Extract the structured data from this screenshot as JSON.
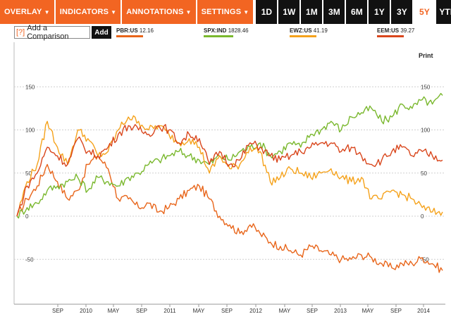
{
  "toolbar": {
    "menus": [
      {
        "label": "OVERLAY"
      },
      {
        "label": "INDICATORS"
      },
      {
        "label": "ANNOTATIONS"
      },
      {
        "label": "SETTINGS"
      }
    ],
    "caret": "▼",
    "ranges": [
      "1D",
      "1W",
      "1M",
      "3M",
      "6M",
      "1Y",
      "3Y",
      "5Y",
      "YTD"
    ],
    "active_range": "5Y"
  },
  "compare": {
    "icon_text": "[?]",
    "placeholder": "Add a Comparison",
    "add_label": "Add"
  },
  "print_label": "Print",
  "colors": {
    "PBR": "#e8651a",
    "SPX": "#7ab82e",
    "EWZ": "#f5a21b",
    "EEM": "#d9461c",
    "accent": "#f26522"
  },
  "chart_data": {
    "type": "line",
    "x_ticks": [
      "SEP",
      "2010",
      "MAY",
      "SEP",
      "2011",
      "MAY",
      "SEP",
      "2012",
      "MAY",
      "SEP",
      "2013",
      "MAY",
      "SEP",
      "2014"
    ],
    "y_ticks": [
      "150",
      "100",
      "50",
      "0",
      "-50"
    ],
    "ylim": [
      -80,
      170
    ],
    "grid": true,
    "legend_position": "top",
    "series": [
      {
        "name": "PBR:US",
        "last": "12.16",
        "color": "#e8651a",
        "values": [
          0,
          20,
          35,
          60,
          40,
          20,
          30,
          60,
          70,
          55,
          20,
          20,
          10,
          15,
          5,
          10,
          20,
          30,
          35,
          20,
          0,
          -10,
          -20,
          -10,
          -20,
          -30,
          -35,
          -40,
          -45,
          -35,
          -40,
          -45,
          -50,
          -50,
          -45,
          -48,
          -55,
          -60,
          -55,
          -55,
          -48,
          -55,
          -63
        ]
      },
      {
        "name": "SPX:IND",
        "last": "1828.46",
        "color": "#7ab82e",
        "values": [
          0,
          10,
          15,
          30,
          35,
          40,
          45,
          30,
          45,
          40,
          35,
          45,
          50,
          60,
          65,
          70,
          75,
          70,
          65,
          60,
          70,
          65,
          75,
          80,
          85,
          70,
          75,
          85,
          80,
          95,
          100,
          110,
          100,
          115,
          120,
          125,
          110,
          115,
          130,
          125,
          135,
          130,
          140
        ]
      },
      {
        "name": "EWZ:US",
        "last": "41.19",
        "color": "#f5a21b",
        "values": [
          0,
          40,
          60,
          110,
          80,
          60,
          100,
          90,
          70,
          75,
          100,
          115,
          110,
          100,
          105,
          95,
          85,
          90,
          80,
          50,
          70,
          55,
          60,
          80,
          75,
          40,
          45,
          55,
          50,
          45,
          50,
          55,
          45,
          40,
          45,
          20,
          20,
          30,
          25,
          20,
          10,
          5,
          5
        ]
      },
      {
        "name": "EEM:US",
        "last": "39.27",
        "color": "#d9461c",
        "values": [
          0,
          35,
          50,
          80,
          70,
          60,
          90,
          75,
          70,
          80,
          95,
          105,
          100,
          95,
          105,
          100,
          85,
          95,
          90,
          60,
          75,
          60,
          65,
          85,
          80,
          70,
          65,
          70,
          75,
          80,
          85,
          85,
          75,
          80,
          70,
          60,
          65,
          75,
          80,
          70,
          75,
          70,
          65
        ]
      }
    ]
  }
}
